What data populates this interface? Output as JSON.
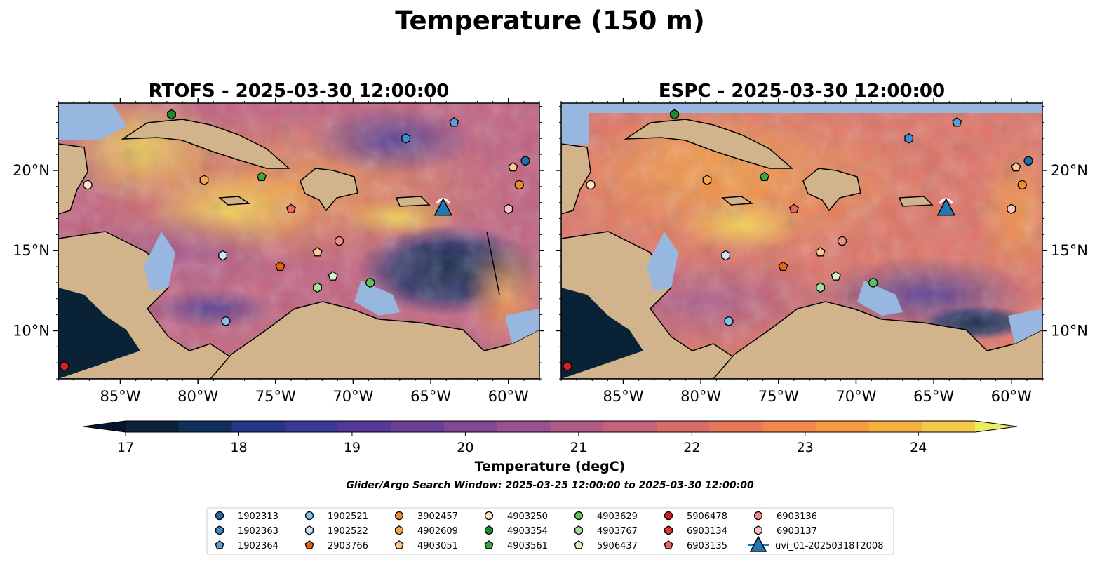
{
  "figure": {
    "suptitle": "Temperature (150 m)",
    "search_window": "Glider/Argo Search Window: 2025-03-25 12:00:00 to 2025-03-30 12:00:00"
  },
  "chart_data": {
    "type": "heatmap",
    "panels": [
      {
        "title": "RTOFS - 2025-03-30 12:00:00"
      },
      {
        "title": "ESPC - 2025-03-30 12:00:00"
      }
    ],
    "lon_range": [
      -89,
      -58
    ],
    "lat_range": [
      7,
      24.2
    ],
    "x_ticks": [
      -85,
      -80,
      -75,
      -70,
      -65,
      -60
    ],
    "x_tick_labels": [
      "85°W",
      "80°W",
      "75°W",
      "70°W",
      "65°W",
      "60°W"
    ],
    "y_ticks": [
      10,
      15,
      20
    ],
    "y_tick_labels": [
      "10°N",
      "15°N",
      "20°N"
    ],
    "colorbar": {
      "label": "Temperature (degC)",
      "min": 17,
      "max": 24.5,
      "ticks": [
        17,
        18,
        19,
        20,
        21,
        22,
        23,
        24
      ],
      "tick_labels": [
        "17",
        "18",
        "19",
        "20",
        "21",
        "22",
        "23",
        "24"
      ],
      "colors": [
        "#0b2238",
        "#102f5c",
        "#24358a",
        "#3c3896",
        "#55399a",
        "#6b3f98",
        "#824896",
        "#9a5190",
        "#b25b86",
        "#c6627a",
        "#d96b69",
        "#e9775a",
        "#f4874a",
        "#f99a40",
        "#f7b040",
        "#f4c94a"
      ],
      "extend_low": "#05152a",
      "extend_high": "#e8f060"
    },
    "legend": {
      "placement": "bottom-center",
      "columns": [
        [
          {
            "name": "1902313",
            "marker": "circle",
            "color": "#1f6eb0"
          },
          {
            "name": "1902363",
            "marker": "hexagon",
            "color": "#3b8fd0"
          },
          {
            "name": "1902364",
            "marker": "pentagon",
            "color": "#5b9fd6"
          }
        ],
        [
          {
            "name": "1902521",
            "marker": "circle",
            "color": "#86bfe8"
          },
          {
            "name": "1902522",
            "marker": "hexagon",
            "color": "#cfe6f7"
          },
          {
            "name": "2903766",
            "marker": "pentagon",
            "color": "#e6650f"
          }
        ],
        [
          {
            "name": "3902457",
            "marker": "circle",
            "color": "#f08a2d"
          },
          {
            "name": "4902609",
            "marker": "hexagon",
            "color": "#f6a552"
          },
          {
            "name": "4903051",
            "marker": "pentagon",
            "color": "#fbc98f"
          }
        ],
        [
          {
            "name": "4903250",
            "marker": "circle",
            "color": "#fde3c8"
          },
          {
            "name": "4903354",
            "marker": "hexagon",
            "color": "#1e8a2c"
          },
          {
            "name": "4903561",
            "marker": "pentagon",
            "color": "#39a83f"
          }
        ],
        [
          {
            "name": "4903629",
            "marker": "circle",
            "color": "#5cc45a"
          },
          {
            "name": "4903767",
            "marker": "hexagon",
            "color": "#a5e09a"
          },
          {
            "name": "5906437",
            "marker": "pentagon",
            "color": "#d5f2cc"
          }
        ],
        [
          {
            "name": "5906478",
            "marker": "circle",
            "color": "#d41f22"
          },
          {
            "name": "6903134",
            "marker": "hexagon",
            "color": "#e0383c"
          },
          {
            "name": "6903135",
            "marker": "pentagon",
            "color": "#ec6466"
          }
        ],
        [
          {
            "name": "6903136",
            "marker": "circle",
            "color": "#f28c8c"
          },
          {
            "name": "6903137",
            "marker": "hexagon",
            "color": "#fbc3c3"
          },
          {
            "name": "uvi_01-20250318T2008",
            "marker": "triangle-line",
            "color": "#1f77b4"
          }
        ]
      ]
    },
    "glider": {
      "name": "uvi_01-20250318T2008",
      "lon": -64.2,
      "lat": 17.6
    },
    "floats": [
      {
        "name": "5906478",
        "marker": "circle",
        "color": "#d41f22",
        "lon": -88.6,
        "lat": 7.8
      },
      {
        "name": "4903250",
        "marker": "circle",
        "color": "#fde3c8",
        "lon": -87.1,
        "lat": 19.1
      },
      {
        "name": "4903354",
        "marker": "hexagon",
        "color": "#1e8a2c",
        "lon": -81.7,
        "lat": 23.5
      },
      {
        "name": "4902609",
        "marker": "hexagon",
        "color": "#f6a552",
        "lon": -79.6,
        "lat": 19.4
      },
      {
        "name": "1902522",
        "marker": "hexagon",
        "color": "#cfe6f7",
        "lon": -78.4,
        "lat": 14.7
      },
      {
        "name": "1902521",
        "marker": "circle",
        "color": "#86bfe8",
        "lon": -78.2,
        "lat": 10.6
      },
      {
        "name": "4903561",
        "marker": "pentagon",
        "color": "#39a83f",
        "lon": -75.9,
        "lat": 19.6
      },
      {
        "name": "2903766",
        "marker": "pentagon",
        "color": "#e6650f",
        "lon": -74.7,
        "lat": 14.0
      },
      {
        "name": "6903135",
        "marker": "pentagon",
        "color": "#ec6466",
        "lon": -74.0,
        "lat": 17.6
      },
      {
        "name": "4903051",
        "marker": "pentagon",
        "color": "#fbc98f",
        "lon": -72.3,
        "lat": 14.9
      },
      {
        "name": "4903767",
        "marker": "hexagon",
        "color": "#a5e09a",
        "lon": -72.3,
        "lat": 12.7
      },
      {
        "name": "5906437",
        "marker": "pentagon",
        "color": "#d5f2cc",
        "lon": -71.3,
        "lat": 13.4
      },
      {
        "name": "6903136",
        "marker": "circle",
        "color": "#f28c8c",
        "lon": -70.9,
        "lat": 15.6
      },
      {
        "name": "4903629",
        "marker": "circle",
        "color": "#5cc45a",
        "lon": -68.9,
        "lat": 13.0
      },
      {
        "name": "1902363",
        "marker": "hexagon",
        "color": "#3b8fd0",
        "lon": -66.6,
        "lat": 22.0
      },
      {
        "name": "1902364",
        "marker": "pentagon",
        "color": "#5b9fd6",
        "lon": -63.5,
        "lat": 23.0
      },
      {
        "name": "6903137",
        "marker": "hexagon",
        "color": "#fbc3c3",
        "lon": -60.0,
        "lat": 17.6
      },
      {
        "name": "3902457",
        "marker": "circle",
        "color": "#f08a2d",
        "lon": -59.3,
        "lat": 19.1
      },
      {
        "name": "4903051",
        "marker": "pentagon",
        "color": "#fbc98f",
        "lon": -59.7,
        "lat": 20.2
      },
      {
        "name": "1902313",
        "marker": "circle",
        "color": "#1f6eb0",
        "lon": -58.9,
        "lat": 20.6
      }
    ]
  }
}
